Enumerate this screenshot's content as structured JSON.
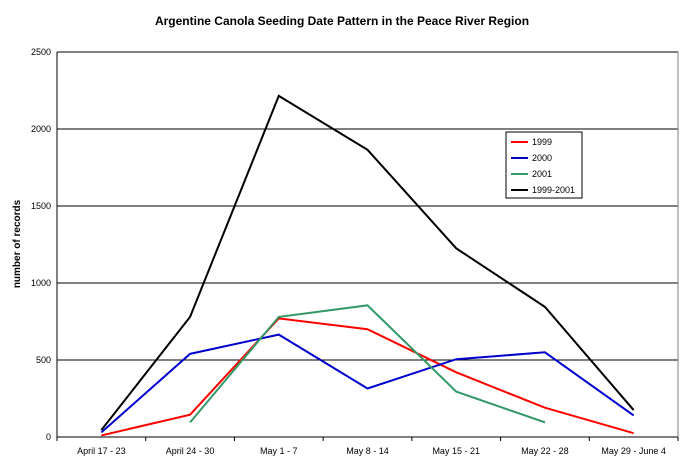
{
  "chart_data": {
    "type": "line",
    "title": "Argentine Canola Seeding Date Pattern in the Peace River Region",
    "xlabel": "",
    "ylabel": "number of records",
    "categories": [
      "April 17 - 23",
      "April 24 - 30",
      "May 1 - 7",
      "May 8 - 14",
      "May 15 - 21",
      "May 22 - 28",
      "May 29 - June 4"
    ],
    "ylim": [
      0,
      2500
    ],
    "yticks": [
      0,
      500,
      1000,
      1500,
      2000,
      2500
    ],
    "grid": true,
    "legend_position": "right",
    "series": [
      {
        "name": "1999",
        "color": "#ff0000",
        "values": [
          10,
          145,
          770,
          700,
          420,
          190,
          25
        ]
      },
      {
        "name": "2000",
        "color": "#0000cc",
        "values": [
          30,
          540,
          665,
          315,
          505,
          550,
          140
        ]
      },
      {
        "name": "2001",
        "color": "#339966",
        "values": [
          null,
          95,
          780,
          855,
          295,
          95,
          null
        ]
      },
      {
        "name": "1999-2001",
        "color": "#000000",
        "values": [
          45,
          780,
          2215,
          1865,
          1225,
          845,
          175
        ]
      }
    ]
  }
}
